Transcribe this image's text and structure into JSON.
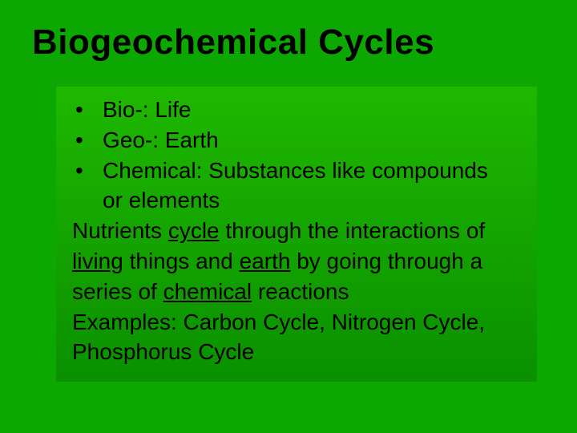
{
  "slide": {
    "background_color": "#0ca700",
    "content_gradient_top": "#1fb800",
    "content_gradient_bottom": "#0a9000",
    "text_color": "#000000",
    "title": "Biogeochemical Cycles",
    "title_fontsize": 44,
    "body_fontsize": 28,
    "bullets": [
      {
        "text": "Bio-: Life"
      },
      {
        "text": "Geo-: Earth"
      },
      {
        "text_line1": "Chemical: Substances like compounds",
        "text_line2": "or elements"
      }
    ],
    "paragraph1": {
      "parts": [
        {
          "t": "Nutrients ",
          "u": false
        },
        {
          "t": "cycle",
          "u": true
        },
        {
          "t": " through the interactions of ",
          "u": false
        },
        {
          "t": "living",
          "u": true
        },
        {
          "t": " things and ",
          "u": false
        },
        {
          "t": "earth",
          "u": true
        },
        {
          "t": " by going through a series of ",
          "u": false
        },
        {
          "t": "chemical",
          "u": true
        },
        {
          "t": " reactions",
          "u": false
        }
      ]
    },
    "paragraph2": "Examples: Carbon Cycle, Nitrogen Cycle, Phosphorus Cycle"
  }
}
